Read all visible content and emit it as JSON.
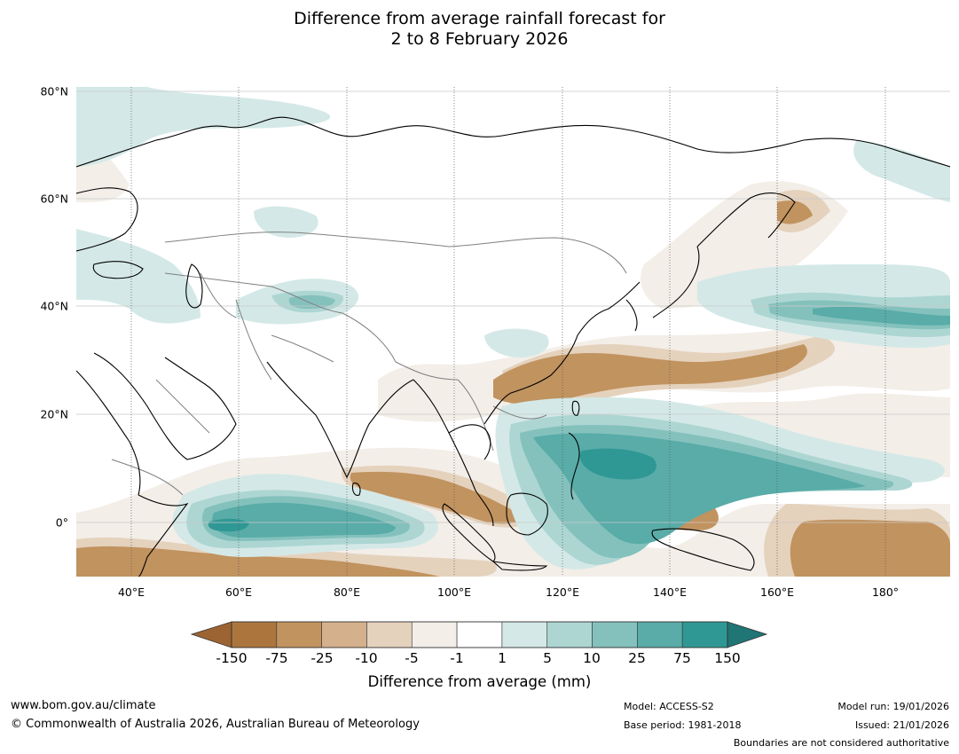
{
  "title": {
    "line1": "Difference from average rainfall forecast for",
    "line2": "2 to 8 February 2026"
  },
  "map": {
    "lat_labels": [
      "80°N",
      "60°N",
      "40°N",
      "20°N",
      "0°"
    ],
    "lon_labels": [
      "40°E",
      "60°E",
      "80°E",
      "100°E",
      "120°E",
      "140°E",
      "160°E",
      "180°"
    ],
    "colors": {
      "lt_minus_75": "#ad753e",
      "minus_75_25": "#c1935f",
      "minus_25_10": "#d5b08c",
      "minus_10_5": "#e5d2bd",
      "minus_5_1": "#f3eee8",
      "near_avg": "#ffffff",
      "plus_1_5": "#d4e9e7",
      "plus_5_10": "#add6d3",
      "plus_10_25": "#84c1bd",
      "plus_25_75": "#59aca8",
      "plus_75_150": "#309894",
      "gt_150": "#1f7674",
      "coastline": "#000000",
      "borders": "#808080"
    }
  },
  "colorbar": {
    "ticks": [
      "-150",
      "-75",
      "-25",
      "-10",
      "-5",
      "-1",
      "1",
      "5",
      "10",
      "25",
      "75",
      "150"
    ],
    "colors": [
      "#ad753e",
      "#c1935f",
      "#d5b08c",
      "#e5d2bd",
      "#f3eee8",
      "#ffffff",
      "#d4e9e7",
      "#add6d3",
      "#84c1bd",
      "#59aca8",
      "#309894"
    ],
    "low_extend_color": "#9c6432",
    "high_extend_color": "#1f7674",
    "title": "Difference from average (mm)"
  },
  "footer": {
    "website": "www.bom.gov.au/climate",
    "copyright": "© Commonwealth of Australia 2026, Australian Bureau of Meteorology",
    "model": "Model: ACCESS-S2",
    "base_period": "Base period: 1981-2018",
    "model_run": "Model run: 19/01/2026",
    "issued": "Issued: 21/01/2026",
    "disclaimer": "Boundaries are not considered authoritative"
  }
}
